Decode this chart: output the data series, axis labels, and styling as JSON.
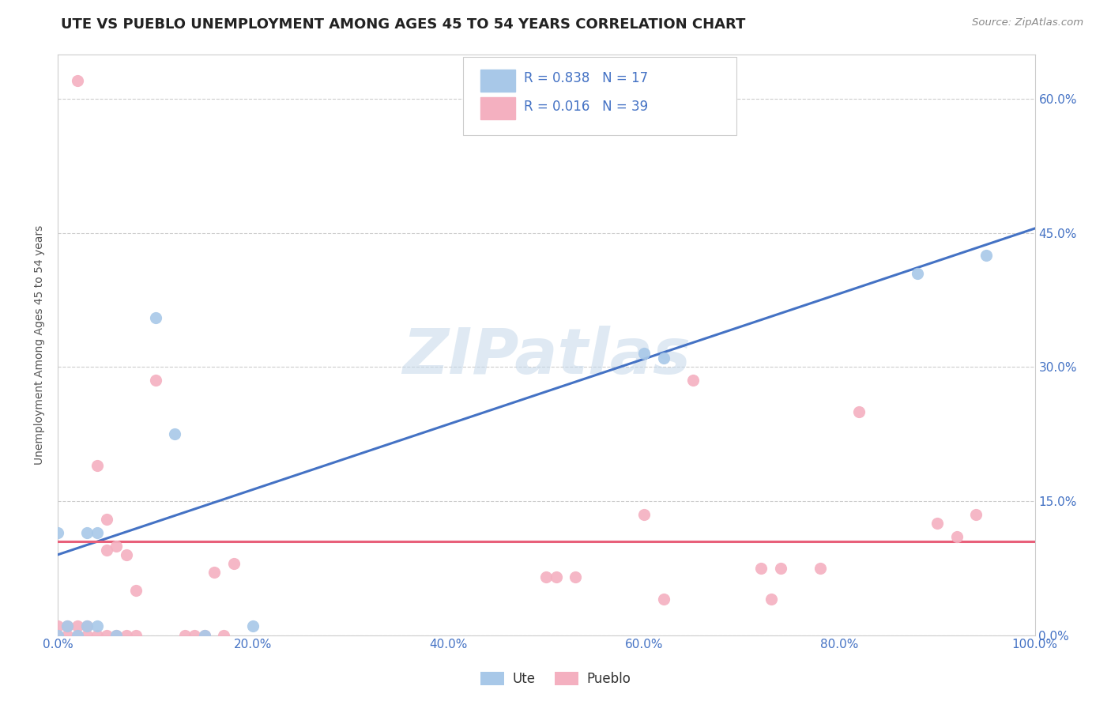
{
  "title": "UTE VS PUEBLO UNEMPLOYMENT AMONG AGES 45 TO 54 YEARS CORRELATION CHART",
  "source": "Source: ZipAtlas.com",
  "ylabel": "Unemployment Among Ages 45 to 54 years",
  "ute_color": "#a8c8e8",
  "pueblo_color": "#f4b0c0",
  "ute_line_color": "#4472c4",
  "pueblo_line_color": "#e8607a",
  "legend_text_color": "#4472c4",
  "watermark": "ZIPatlas",
  "ute_points": [
    [
      0.0,
      0.0
    ],
    [
      0.01,
      0.01
    ],
    [
      0.02,
      0.0
    ],
    [
      0.03,
      0.01
    ],
    [
      0.03,
      0.115
    ],
    [
      0.04,
      0.115
    ],
    [
      0.04,
      0.01
    ],
    [
      0.06,
      0.0
    ],
    [
      0.1,
      0.355
    ],
    [
      0.12,
      0.225
    ],
    [
      0.15,
      0.0
    ],
    [
      0.6,
      0.315
    ],
    [
      0.62,
      0.31
    ],
    [
      0.88,
      0.405
    ],
    [
      0.95,
      0.425
    ],
    [
      0.2,
      0.01
    ],
    [
      0.0,
      0.115
    ]
  ],
  "pueblo_points": [
    [
      0.0,
      0.0
    ],
    [
      0.0,
      0.01
    ],
    [
      0.01,
      0.0
    ],
    [
      0.01,
      0.01
    ],
    [
      0.02,
      0.0
    ],
    [
      0.02,
      0.01
    ],
    [
      0.03,
      0.0
    ],
    [
      0.03,
      0.01
    ],
    [
      0.04,
      0.0
    ],
    [
      0.04,
      0.19
    ],
    [
      0.05,
      0.0
    ],
    [
      0.05,
      0.095
    ],
    [
      0.05,
      0.13
    ],
    [
      0.06,
      0.0
    ],
    [
      0.06,
      0.1
    ],
    [
      0.07,
      0.0
    ],
    [
      0.07,
      0.09
    ],
    [
      0.08,
      0.0
    ],
    [
      0.08,
      0.05
    ],
    [
      0.1,
      0.285
    ],
    [
      0.13,
      0.0
    ],
    [
      0.14,
      0.0
    ],
    [
      0.15,
      0.0
    ],
    [
      0.16,
      0.07
    ],
    [
      0.17,
      0.0
    ],
    [
      0.18,
      0.08
    ],
    [
      0.5,
      0.065
    ],
    [
      0.51,
      0.065
    ],
    [
      0.53,
      0.065
    ],
    [
      0.6,
      0.135
    ],
    [
      0.62,
      0.04
    ],
    [
      0.65,
      0.285
    ],
    [
      0.72,
      0.075
    ],
    [
      0.73,
      0.04
    ],
    [
      0.74,
      0.075
    ],
    [
      0.78,
      0.075
    ],
    [
      0.82,
      0.25
    ],
    [
      0.9,
      0.125
    ],
    [
      0.92,
      0.11
    ],
    [
      0.94,
      0.135
    ],
    [
      0.02,
      0.62
    ]
  ],
  "ute_line": [
    0.0,
    0.09,
    1.0,
    0.455
  ],
  "pueblo_line": [
    0.0,
    0.105,
    1.0,
    0.105
  ],
  "xlim": [
    0.0,
    1.0
  ],
  "ylim": [
    0.0,
    0.65
  ],
  "xtick_vals": [
    0.0,
    0.2,
    0.4,
    0.6,
    0.8,
    1.0
  ],
  "ytick_vals": [
    0.0,
    0.15,
    0.3,
    0.45,
    0.6
  ],
  "tick_label_color": "#4472c4",
  "grid_color": "#cccccc",
  "spine_color": "#cccccc",
  "title_fontsize": 13,
  "axis_fontsize": 11,
  "scatter_size": 120
}
